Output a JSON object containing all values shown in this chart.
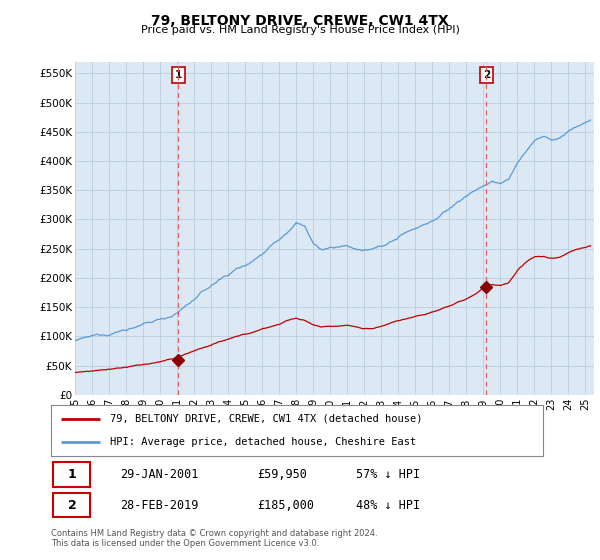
{
  "title": "79, BELTONY DRIVE, CREWE, CW1 4TX",
  "subtitle": "Price paid vs. HM Land Registry's House Price Index (HPI)",
  "ylabel_ticks": [
    "£0",
    "£50K",
    "£100K",
    "£150K",
    "£200K",
    "£250K",
    "£300K",
    "£350K",
    "£400K",
    "£450K",
    "£500K",
    "£550K"
  ],
  "ytick_values": [
    0,
    50000,
    100000,
    150000,
    200000,
    250000,
    300000,
    350000,
    400000,
    450000,
    500000,
    550000
  ],
  "ylim": [
    0,
    570000
  ],
  "xlim_start": 1995.0,
  "xlim_end": 2025.5,
  "sale1_x": 2001.08,
  "sale1_y": 59950,
  "sale2_x": 2019.17,
  "sale2_y": 185000,
  "legend_line1": "79, BELTONY DRIVE, CREWE, CW1 4TX (detached house)",
  "legend_line2": "HPI: Average price, detached house, Cheshire East",
  "table_row1_num": "1",
  "table_row1_date": "29-JAN-2001",
  "table_row1_price": "£59,950",
  "table_row1_hpi": "57% ↓ HPI",
  "table_row2_num": "2",
  "table_row2_date": "28-FEB-2019",
  "table_row2_price": "£185,000",
  "table_row2_hpi": "48% ↓ HPI",
  "footer1": "Contains HM Land Registry data © Crown copyright and database right 2024.",
  "footer2": "This data is licensed under the Open Government Licence v3.0.",
  "hpi_color": "#5b9bd5",
  "sale_color": "#c00000",
  "sale_dot_color": "#8b0000",
  "marker_line_color": "#e06060",
  "plot_bg_color": "#dce9f5",
  "background_color": "#ffffff",
  "grid_color": "#b8cfe0"
}
